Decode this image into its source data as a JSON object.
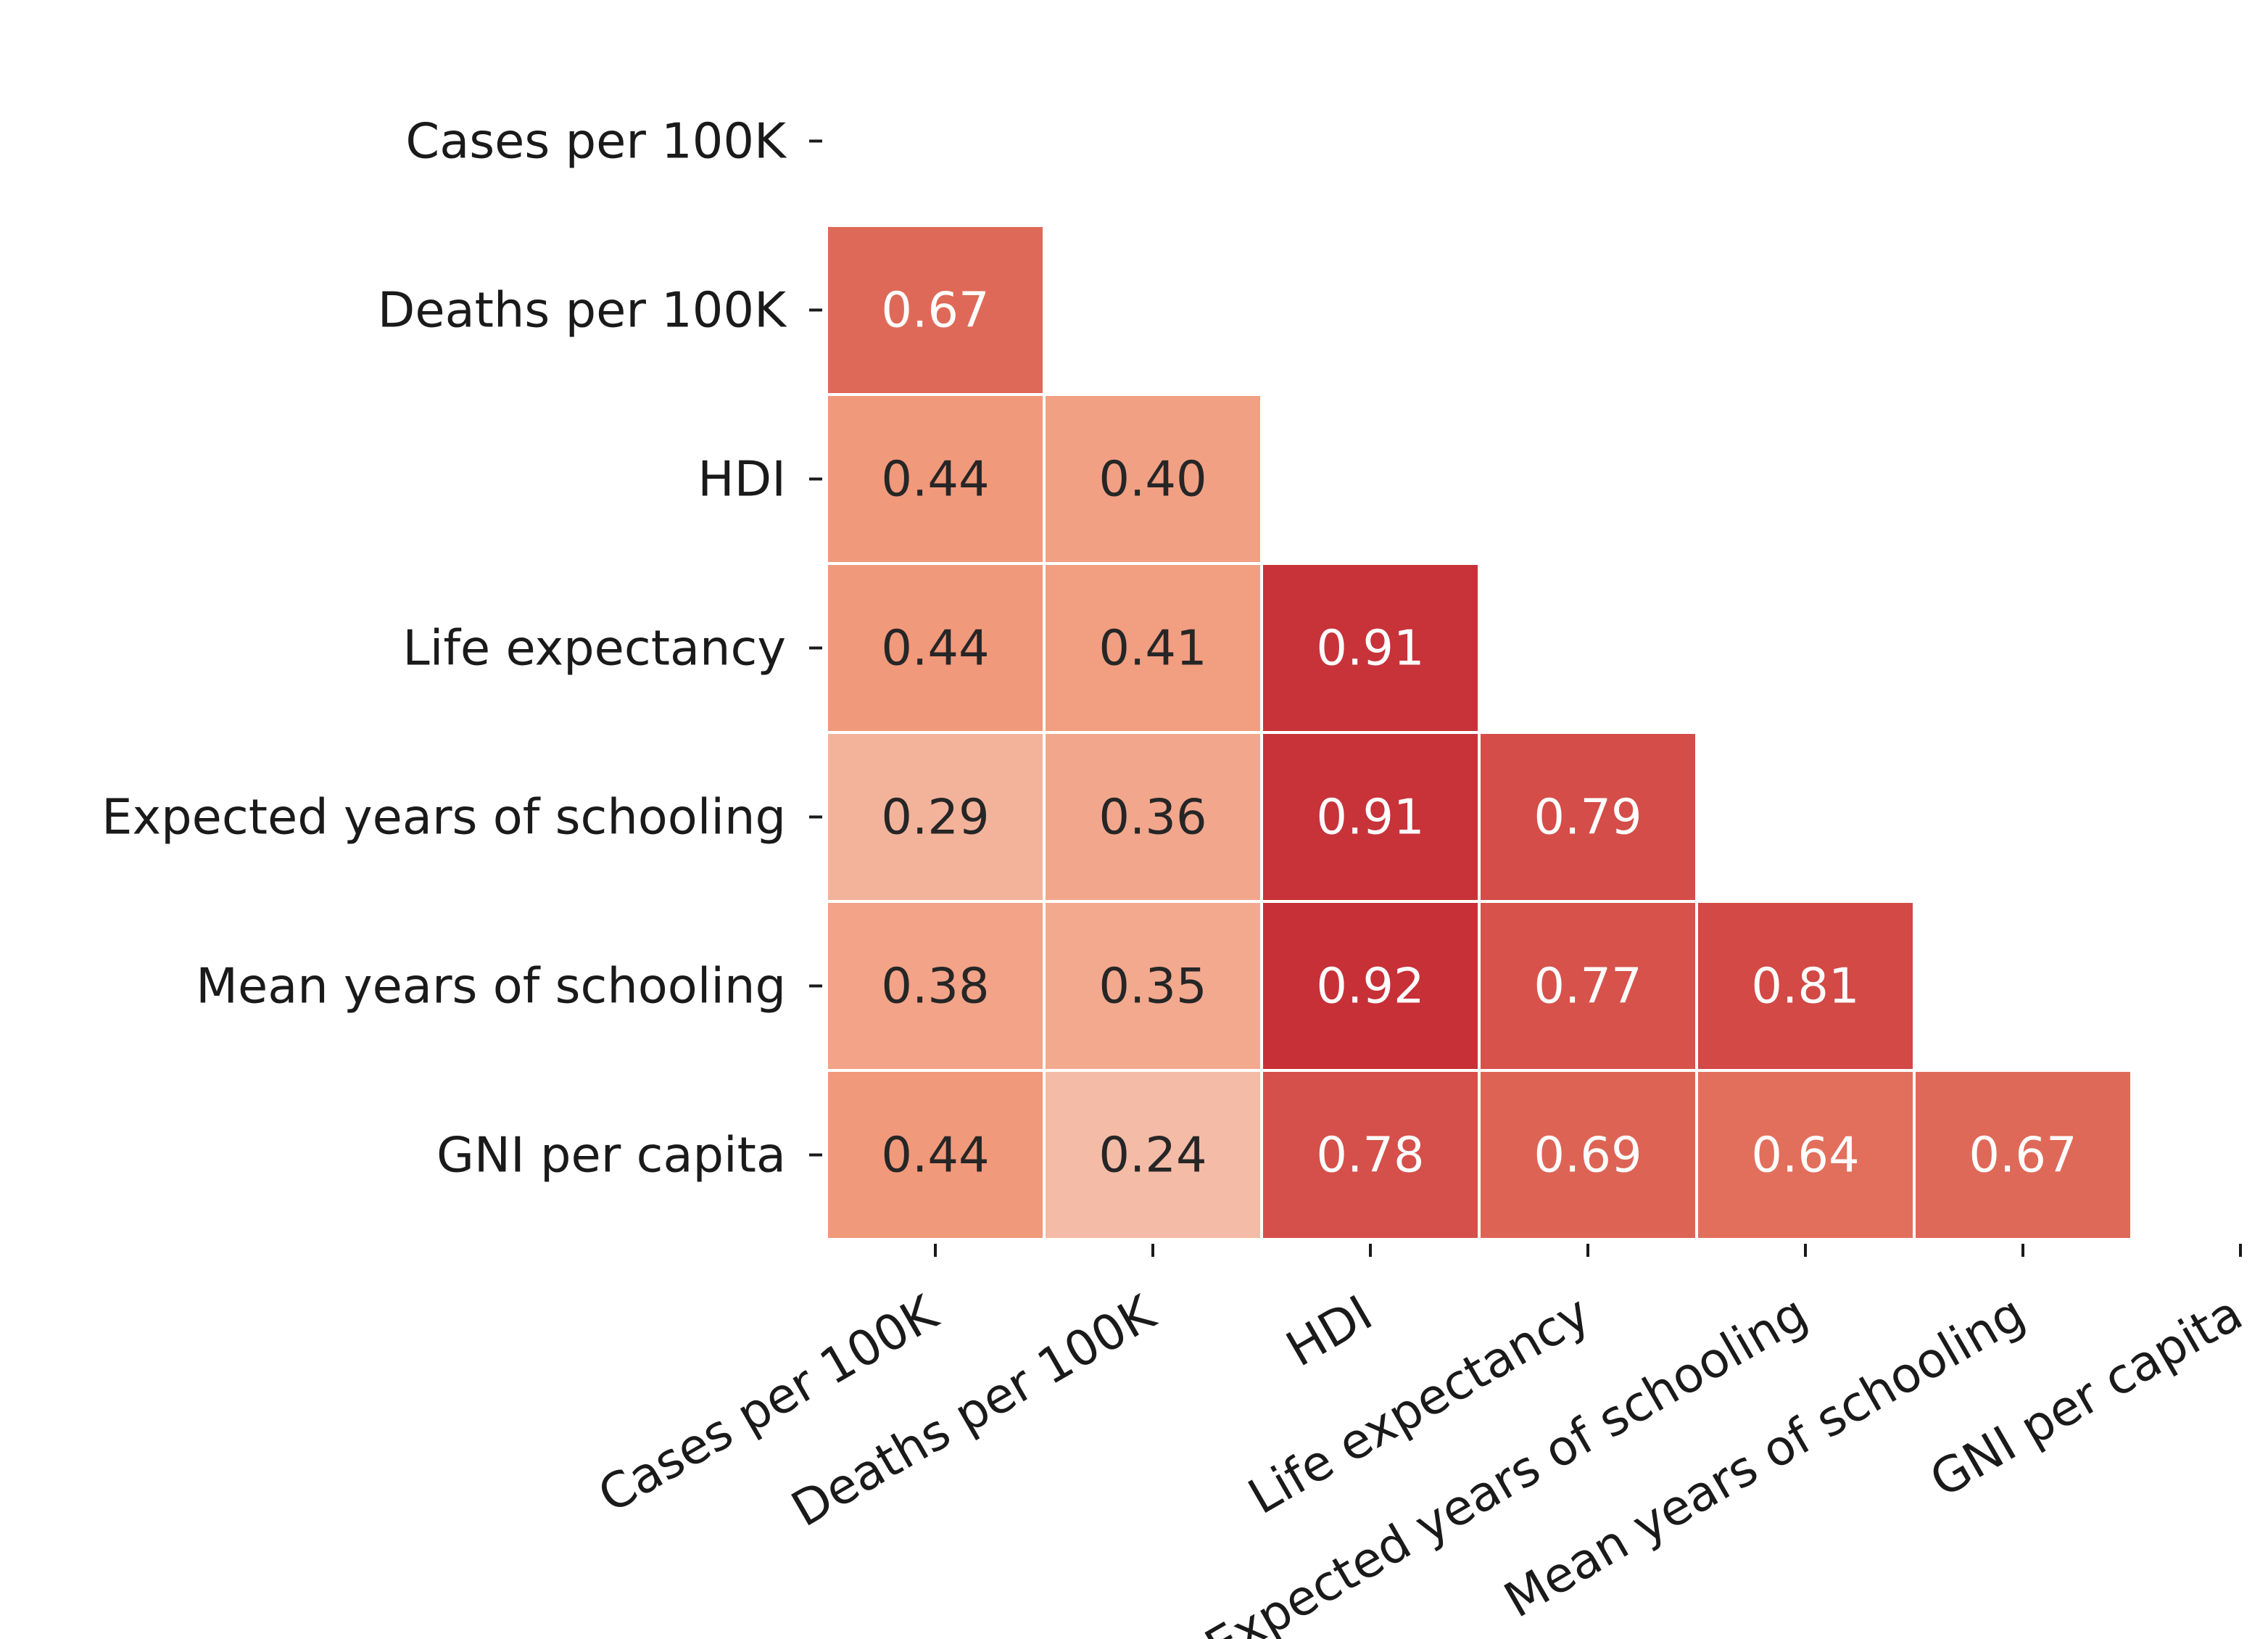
{
  "chart_data": {
    "type": "heatmap",
    "title": "",
    "xlabel": "",
    "ylabel": "",
    "mask": "upper-triangle-including-diagonal",
    "color_scale": {
      "low": "#f7e4da",
      "mid": "#f08f6e",
      "high": "#bf1e2d",
      "vmin": 0.0,
      "vmax": 1.0,
      "light_text": "#ffffff",
      "dark_text": "#262626"
    },
    "row_labels": [
      "Cases per 100K",
      "Deaths per 100K",
      "HDI",
      "Life expectancy",
      "Expected years of schooling",
      "Mean years of schooling",
      "GNI per capita"
    ],
    "col_labels": [
      "Cases per 100K",
      "Deaths per 100K",
      "HDI",
      "Life expectancy",
      "Expected years of schooling",
      "Mean years of schooling",
      "GNI per capita"
    ],
    "cells": [
      {
        "row": 1,
        "col": 0,
        "value": 0.67,
        "label": "0.67"
      },
      {
        "row": 2,
        "col": 0,
        "value": 0.44,
        "label": "0.44"
      },
      {
        "row": 2,
        "col": 1,
        "value": 0.4,
        "label": "0.40"
      },
      {
        "row": 3,
        "col": 0,
        "value": 0.44,
        "label": "0.44"
      },
      {
        "row": 3,
        "col": 1,
        "value": 0.41,
        "label": "0.41"
      },
      {
        "row": 3,
        "col": 2,
        "value": 0.91,
        "label": "0.91"
      },
      {
        "row": 4,
        "col": 0,
        "value": 0.29,
        "label": "0.29"
      },
      {
        "row": 4,
        "col": 1,
        "value": 0.36,
        "label": "0.36"
      },
      {
        "row": 4,
        "col": 2,
        "value": 0.91,
        "label": "0.91"
      },
      {
        "row": 4,
        "col": 3,
        "value": 0.79,
        "label": "0.79"
      },
      {
        "row": 5,
        "col": 0,
        "value": 0.38,
        "label": "0.38"
      },
      {
        "row": 5,
        "col": 1,
        "value": 0.35,
        "label": "0.35"
      },
      {
        "row": 5,
        "col": 2,
        "value": 0.92,
        "label": "0.92"
      },
      {
        "row": 5,
        "col": 3,
        "value": 0.77,
        "label": "0.77"
      },
      {
        "row": 5,
        "col": 4,
        "value": 0.81,
        "label": "0.81"
      },
      {
        "row": 6,
        "col": 0,
        "value": 0.44,
        "label": "0.44"
      },
      {
        "row": 6,
        "col": 1,
        "value": 0.24,
        "label": "0.24"
      },
      {
        "row": 6,
        "col": 2,
        "value": 0.78,
        "label": "0.78"
      },
      {
        "row": 6,
        "col": 3,
        "value": 0.69,
        "label": "0.69"
      },
      {
        "row": 6,
        "col": 4,
        "value": 0.64,
        "label": "0.64"
      },
      {
        "row": 6,
        "col": 5,
        "value": 0.67,
        "label": "0.67"
      }
    ]
  }
}
